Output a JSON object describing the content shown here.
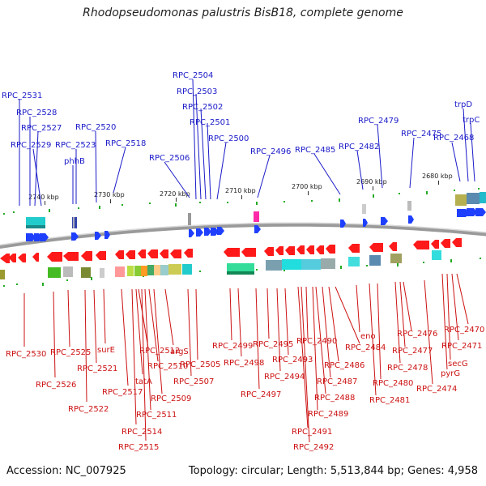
{
  "title": "Rhodopseudomonas palustris BisB18, complete genome",
  "footer": {
    "accession": "Accession: NC_007925",
    "topology": "Topology: circular; Length: 5,513,844 bp; Genes: 4,958"
  },
  "colors": {
    "top_label": "#1a1ac8",
    "bottom_label": "#cc1111",
    "forward": "#1f3fff",
    "reverse": "#ff1a1a",
    "tick": "#229922"
  },
  "scale_labels": [
    "2740 kbp",
    "2730 kbp",
    "2720 kbp",
    "2710 kbp",
    "2700 kbp",
    "2690 kbp",
    "2680 kbp"
  ],
  "top_labels": [
    "RPC_2531",
    "RPC_2528",
    "RPC_2527",
    "RPC_2529",
    "phhB",
    "RPC_2523",
    "RPC_2520",
    "RPC_2518",
    "RPC_2506",
    "RPC_2504",
    "RPC_2503",
    "RPC_2502",
    "RPC_2501",
    "RPC_2500",
    "RPC_2496",
    "RPC_2485",
    "RPC_2482",
    "RPC_2479",
    "RPC_2475",
    "RPC_2468",
    "trpD",
    "trpC"
  ],
  "bottom_labels": [
    "RPC_2530",
    "RPC_2525",
    "surE",
    "RPC_2526",
    "RPC_2521",
    "RPC_2522",
    "RPC_2517",
    "RPC_2512",
    "tatA",
    "RPC_2510",
    "argS",
    "RPC_2514",
    "RPC_2511",
    "RPC_2515",
    "RPC_2509",
    "RPC_2505",
    "RPC_2507",
    "RPC_2499",
    "RPC_2498",
    "RPC_2497",
    "RPC_2495",
    "RPC_2494",
    "RPC_2493",
    "RPC_2490",
    "RPC_2491",
    "RPC_2492",
    "RPC_2489",
    "RPC_2488",
    "RPC_2487",
    "RPC_2486",
    "eno",
    "RPC_2484",
    "RPC_2480",
    "RPC_2481",
    "RPC_2476",
    "RPC_2477",
    "RPC_2478",
    "RPC_2474",
    "RPC_2470",
    "RPC_2471",
    "secG",
    "pyrG"
  ]
}
